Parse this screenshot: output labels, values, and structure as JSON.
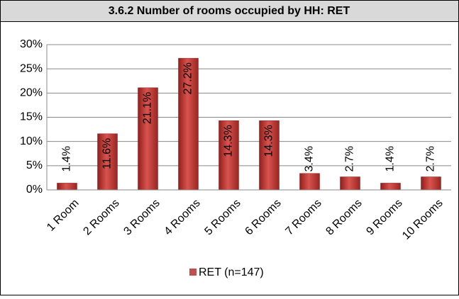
{
  "chart_data": {
    "type": "bar",
    "title": "3.6.2 Number of rooms occupied by HH: RET",
    "categories": [
      "1 Room",
      "2 Rooms",
      "3 Rooms",
      "4 Rooms",
      "5 Rooms",
      "6 Rooms",
      "7 Rooms",
      "8 Rooms",
      "9 Rooms",
      "10 Rooms"
    ],
    "series": [
      {
        "name": "RET (n=147)",
        "color": "#c0504d",
        "values": [
          1.4,
          11.6,
          21.1,
          27.2,
          14.3,
          14.3,
          3.4,
          2.7,
          1.4,
          2.7
        ],
        "value_labels": [
          "1.4%",
          "11.6%",
          "21.1%",
          "27.2%",
          "14.3%",
          "14.3%",
          "3.4%",
          "2.7%",
          "1.4%",
          "2.7%"
        ]
      }
    ],
    "ylim": [
      0,
      30
    ],
    "yticks": [
      {
        "value": 0,
        "label": "0%"
      },
      {
        "value": 5,
        "label": "5%"
      },
      {
        "value": 10,
        "label": "10%"
      },
      {
        "value": 15,
        "label": "15%"
      },
      {
        "value": 20,
        "label": "20%"
      },
      {
        "value": 25,
        "label": "25%"
      },
      {
        "value": 30,
        "label": "30%"
      }
    ],
    "grid": true,
    "legend": "bottom"
  }
}
